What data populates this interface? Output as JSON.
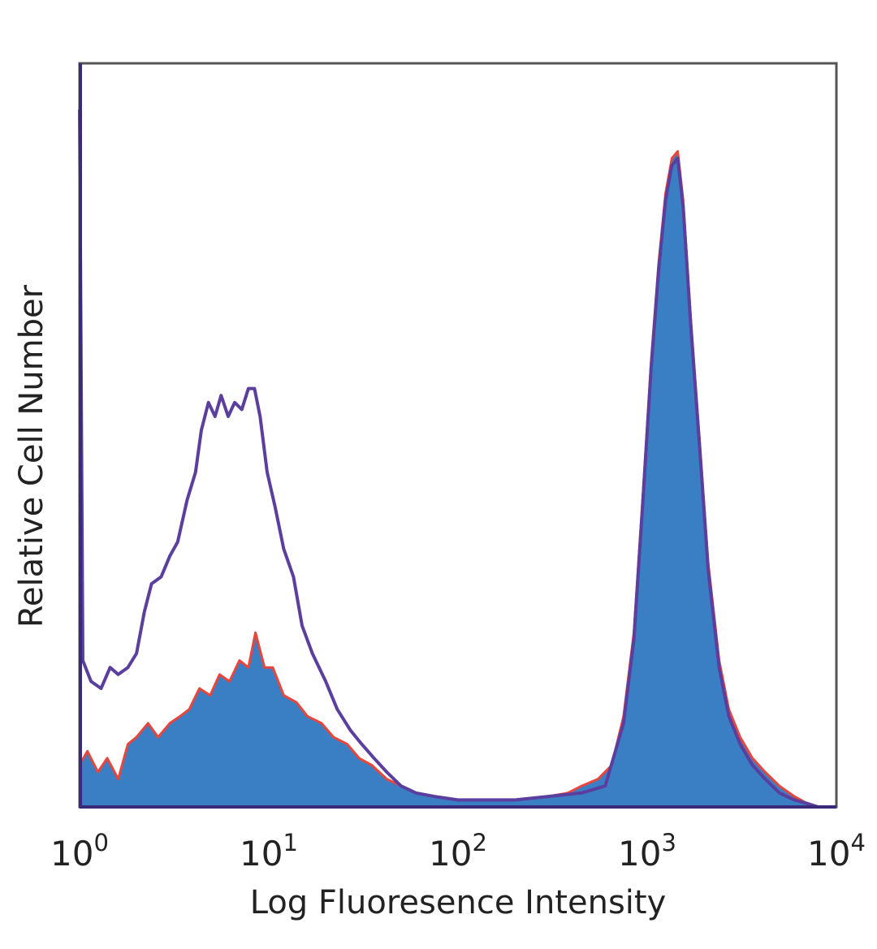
{
  "chart_data": {
    "type": "area",
    "xlabel": "Log Fluoresence Intensity",
    "ylabel": "Relative Cell Number",
    "xscale": "log",
    "xlim": [
      1,
      10000
    ],
    "ylim": [
      0,
      100
    ],
    "grid": false,
    "x_ticks": [
      {
        "base": "10",
        "exp": "0",
        "value": 1
      },
      {
        "base": "10",
        "exp": "1",
        "value": 10
      },
      {
        "base": "10",
        "exp": "2",
        "value": 100
      },
      {
        "base": "10",
        "exp": "3",
        "value": 1000
      },
      {
        "base": "10",
        "exp": "4",
        "value": 10000
      }
    ],
    "series": [
      {
        "style": "filled",
        "fill": "#3a7fc4",
        "stroke": "#e8453c",
        "points": [
          [
            1.0,
            6
          ],
          [
            1.1,
            8
          ],
          [
            1.25,
            5
          ],
          [
            1.4,
            7
          ],
          [
            1.6,
            4
          ],
          [
            1.8,
            9
          ],
          [
            2.0,
            10
          ],
          [
            2.3,
            12
          ],
          [
            2.6,
            10
          ],
          [
            3.0,
            12
          ],
          [
            3.4,
            13
          ],
          [
            3.8,
            14
          ],
          [
            4.3,
            17
          ],
          [
            4.9,
            16
          ],
          [
            5.5,
            19
          ],
          [
            6.2,
            18
          ],
          [
            7.0,
            21
          ],
          [
            7.8,
            20
          ],
          [
            8.5,
            25
          ],
          [
            9.5,
            20
          ],
          [
            10.5,
            20
          ],
          [
            12,
            16
          ],
          [
            14,
            15
          ],
          [
            16,
            13
          ],
          [
            19,
            12
          ],
          [
            22,
            10
          ],
          [
            26,
            9
          ],
          [
            30,
            7
          ],
          [
            35,
            6
          ],
          [
            42,
            4
          ],
          [
            50,
            3
          ],
          [
            60,
            2
          ],
          [
            75,
            1.5
          ],
          [
            100,
            1
          ],
          [
            150,
            1
          ],
          [
            200,
            1
          ],
          [
            300,
            1.5
          ],
          [
            380,
            2
          ],
          [
            450,
            3
          ],
          [
            550,
            4
          ],
          [
            650,
            6
          ],
          [
            750,
            13
          ],
          [
            850,
            25
          ],
          [
            950,
            45
          ],
          [
            1050,
            64
          ],
          [
            1150,
            78
          ],
          [
            1250,
            88
          ],
          [
            1350,
            93
          ],
          [
            1450,
            94
          ],
          [
            1550,
            87
          ],
          [
            1700,
            70
          ],
          [
            1900,
            52
          ],
          [
            2100,
            35
          ],
          [
            2400,
            21
          ],
          [
            2700,
            14
          ],
          [
            3100,
            10
          ],
          [
            3600,
            7
          ],
          [
            4200,
            5
          ],
          [
            5000,
            3
          ],
          [
            6000,
            1.5
          ],
          [
            7000,
            0.5
          ],
          [
            8000,
            0
          ]
        ]
      },
      {
        "style": "outline",
        "stroke": "#5b3f9e",
        "points": [
          [
            1.0,
            100
          ],
          [
            1.04,
            21
          ],
          [
            1.15,
            18
          ],
          [
            1.3,
            17
          ],
          [
            1.45,
            20
          ],
          [
            1.6,
            19
          ],
          [
            1.8,
            20
          ],
          [
            2.0,
            22
          ],
          [
            2.2,
            28
          ],
          [
            2.4,
            32
          ],
          [
            2.7,
            33
          ],
          [
            3.0,
            36
          ],
          [
            3.3,
            38
          ],
          [
            3.7,
            44
          ],
          [
            4.1,
            48
          ],
          [
            4.4,
            54
          ],
          [
            4.8,
            58
          ],
          [
            5.2,
            56
          ],
          [
            5.6,
            59
          ],
          [
            6.1,
            56
          ],
          [
            6.6,
            58
          ],
          [
            7.2,
            57
          ],
          [
            7.8,
            60
          ],
          [
            8.4,
            60
          ],
          [
            9.0,
            56
          ],
          [
            9.8,
            48
          ],
          [
            10.8,
            43
          ],
          [
            12,
            37
          ],
          [
            13.5,
            33
          ],
          [
            15,
            26
          ],
          [
            17,
            22
          ],
          [
            20,
            18
          ],
          [
            23,
            14
          ],
          [
            27,
            11
          ],
          [
            31,
            9
          ],
          [
            36,
            7
          ],
          [
            42,
            5
          ],
          [
            50,
            3
          ],
          [
            60,
            2
          ],
          [
            75,
            1.5
          ],
          [
            100,
            1
          ],
          [
            150,
            1
          ],
          [
            200,
            1
          ],
          [
            300,
            1.5
          ],
          [
            450,
            2
          ],
          [
            600,
            3
          ],
          [
            750,
            12
          ],
          [
            850,
            24
          ],
          [
            950,
            44
          ],
          [
            1050,
            63
          ],
          [
            1150,
            77
          ],
          [
            1250,
            87
          ],
          [
            1350,
            92
          ],
          [
            1450,
            93
          ],
          [
            1550,
            86
          ],
          [
            1700,
            69
          ],
          [
            1900,
            51
          ],
          [
            2100,
            34
          ],
          [
            2400,
            20
          ],
          [
            2700,
            13
          ],
          [
            3100,
            9
          ],
          [
            3600,
            6
          ],
          [
            4200,
            4
          ],
          [
            5000,
            2
          ],
          [
            6000,
            1
          ],
          [
            7000,
            0.5
          ],
          [
            8000,
            0
          ]
        ]
      }
    ]
  }
}
